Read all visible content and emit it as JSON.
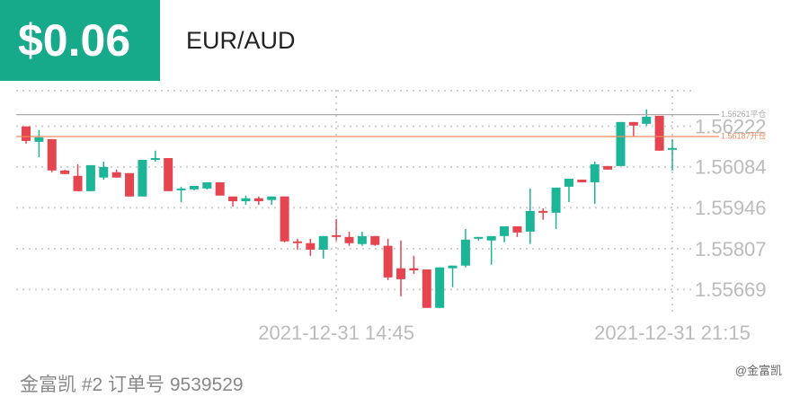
{
  "header": {
    "amount": "$0.06",
    "pair": "EUR/AUD"
  },
  "footer": {
    "text": "金富凯 #2   订单号 9539529",
    "watermark": "@金富凯"
  },
  "chart_data": {
    "type": "candlestick",
    "categories": [
      null,
      null,
      null,
      null,
      null,
      null,
      null,
      null,
      null,
      null,
      null,
      null,
      null,
      null,
      null,
      null,
      null,
      null,
      null,
      null,
      null,
      null,
      null,
      null,
      "2021-12-31 14:45",
      null,
      null,
      null,
      null,
      null,
      null,
      null,
      null,
      null,
      null,
      null,
      null,
      null,
      null,
      null,
      null,
      null,
      null,
      null,
      null,
      null,
      null,
      null,
      null,
      null,
      "2021-12-31 21:15"
    ],
    "open": [
      1.56221,
      1.56169,
      1.56178,
      1.56072,
      1.56054,
      1.56002,
      1.56048,
      1.56066,
      1.56063,
      1.55984,
      1.56108,
      1.56114,
      1.56005,
      1.56008,
      1.56011,
      1.56032,
      1.55984,
      1.55968,
      1.55978,
      1.55972,
      1.55984,
      1.55832,
      1.55826,
      1.55804,
      1.55853,
      1.55847,
      1.55823,
      1.5585,
      1.55817,
      1.55741,
      1.55741,
      1.55737,
      1.55607,
      1.55741,
      1.5575,
      1.55841,
      1.55835,
      1.5585,
      1.55883,
      1.55865,
      1.55935,
      1.55929,
      1.56017,
      1.56041,
      1.56032,
      1.56087,
      1.56087,
      1.56236,
      1.5623,
      1.56257,
      1.56142
    ],
    "high": [
      1.56221,
      1.56209,
      1.56178,
      1.56075,
      1.56093,
      1.5609,
      1.56102,
      1.56075,
      1.56063,
      1.56108,
      1.56139,
      1.56114,
      1.56017,
      1.5602,
      1.56032,
      1.56032,
      1.55984,
      1.55987,
      1.55984,
      1.55984,
      1.55984,
      1.55841,
      1.55841,
      1.5585,
      1.55908,
      1.55865,
      1.55865,
      1.5585,
      1.55841,
      1.55835,
      1.55783,
      1.55737,
      1.55744,
      1.5575,
      1.55874,
      1.55847,
      1.5585,
      1.55883,
      1.55883,
      1.56011,
      1.55944,
      1.56014,
      1.56044,
      1.56041,
      1.56102,
      1.56087,
      1.56236,
      1.56236,
      1.56279,
      1.56257,
      1.56178
    ],
    "low": [
      1.56163,
      1.56117,
      1.56066,
      1.5606,
      1.56002,
      1.56002,
      1.56041,
      1.56048,
      1.55984,
      1.55984,
      1.56102,
      1.56002,
      1.55965,
      1.56005,
      1.56008,
      1.55987,
      1.5595,
      1.55956,
      1.55956,
      1.55956,
      1.55829,
      1.55804,
      1.55783,
      1.55774,
      1.55835,
      1.55817,
      1.55817,
      1.55817,
      1.55701,
      1.55646,
      1.55722,
      1.55607,
      1.55607,
      1.55677,
      1.55744,
      1.55835,
      1.55753,
      1.55829,
      1.55847,
      1.55823,
      1.55905,
      1.55874,
      1.55965,
      1.56032,
      1.55959,
      1.56075,
      1.56087,
      1.56187,
      1.56224,
      1.56139,
      1.56072
    ],
    "close": [
      1.56172,
      1.56184,
      1.56072,
      1.5606,
      1.56002,
      1.5609,
      1.56084,
      1.56048,
      1.55984,
      1.56108,
      1.56114,
      1.56002,
      1.56011,
      1.5602,
      1.56032,
      1.55987,
      1.55968,
      1.55978,
      1.55968,
      1.55984,
      1.55832,
      1.55826,
      1.55804,
      1.5585,
      1.55847,
      1.55826,
      1.5585,
      1.5582,
      1.5571,
      1.55704,
      1.55734,
      1.55607,
      1.55744,
      1.5575,
      1.55838,
      1.55847,
      1.5585,
      1.55883,
      1.55862,
      1.55935,
      1.55932,
      1.56014,
      1.56044,
      1.56032,
      1.56093,
      1.56075,
      1.56236,
      1.56224,
      1.56254,
      1.56139,
      1.56148
    ],
    "up_color": "#1db598",
    "down_color": "#e5454f",
    "ylim": [
      1.55585,
      1.56345
    ],
    "yticks": [
      1.56222,
      1.56084,
      1.55946,
      1.55807,
      1.55669
    ],
    "ref_lines": [
      {
        "value": 1.56261,
        "label": "1.56261平仓",
        "color": "#aaaaaa"
      },
      {
        "value": 1.56187,
        "label": "1.56187开仓",
        "color": "#f08a5d"
      }
    ],
    "grid": true
  }
}
